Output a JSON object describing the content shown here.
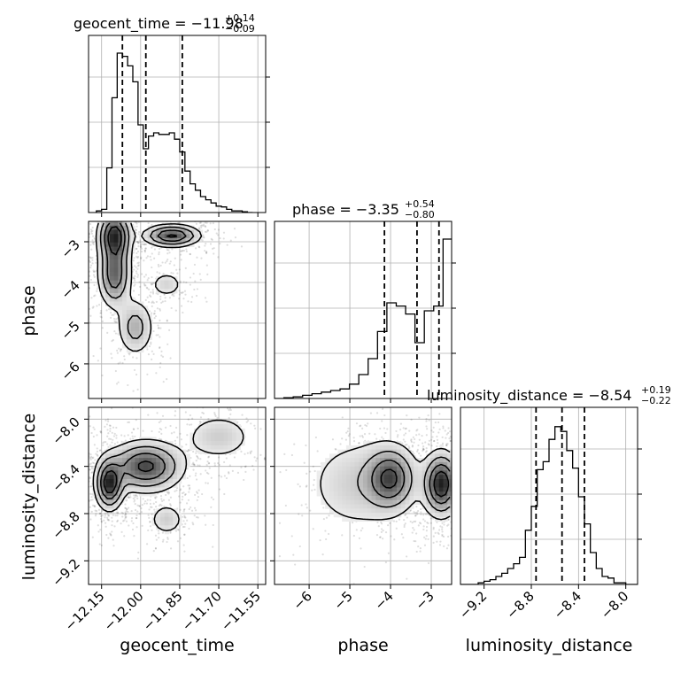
{
  "chart_data": {
    "type": "corner",
    "parameters": [
      "geocent_time",
      "phase",
      "luminosity_distance"
    ],
    "grid": true,
    "titles": [
      {
        "name": "geocent_time",
        "prefix": "geocent_time = ",
        "value": "−11.98",
        "plus": "+0.14",
        "minus": "−0.09"
      },
      {
        "name": "phase",
        "prefix": "phase = ",
        "value": "−3.35",
        "plus": "+0.54",
        "minus": "−0.80"
      },
      {
        "name": "luminosity_distance",
        "prefix": "luminosity_distance = ",
        "value": "−8.54",
        "plus": "+0.19",
        "minus": "−0.22"
      }
    ],
    "axes": {
      "geocent_time": {
        "range": [
          -12.2,
          -11.52
        ],
        "ticks": [
          -12.15,
          -12.0,
          -11.85,
          -11.7,
          -11.55
        ],
        "tick_labels": [
          "−12.15",
          "−12.00",
          "−11.85",
          "−11.70",
          "−11.55"
        ],
        "label": "geocent_time"
      },
      "phase": {
        "range": [
          -6.85,
          -2.5
        ],
        "ticks": [
          -6,
          -5,
          -4,
          -3
        ],
        "tick_labels": [
          "−6",
          "−5",
          "−4",
          "−3"
        ],
        "label": "phase"
      },
      "luminosity_distance": {
        "range": [
          -9.4,
          -7.9
        ],
        "ticks": [
          -9.2,
          -8.8,
          -8.4,
          -8.0
        ],
        "tick_labels": [
          "−9.2",
          "−8.8",
          "−8.4",
          "−8.0"
        ],
        "label": "luminosity_distance"
      }
    },
    "histograms": [
      {
        "parameter": "geocent_time",
        "edges": [
          -12.17,
          -12.15,
          -12.13,
          -12.11,
          -12.09,
          -12.07,
          -12.05,
          -12.03,
          -12.01,
          -11.99,
          -11.97,
          -11.95,
          -11.93,
          -11.91,
          -11.89,
          -11.87,
          -11.85,
          -11.83,
          -11.81,
          -11.79,
          -11.77,
          -11.75,
          -11.73,
          -11.71,
          -11.69,
          -11.67,
          -11.65,
          -11.63,
          -11.61,
          -11.59,
          -11.57
        ],
        "counts": [
          0.01,
          0.02,
          0.28,
          0.72,
          1.0,
          0.98,
          0.92,
          0.82,
          0.55,
          0.4,
          0.48,
          0.5,
          0.49,
          0.49,
          0.5,
          0.46,
          0.38,
          0.26,
          0.18,
          0.14,
          0.1,
          0.08,
          0.06,
          0.04,
          0.035,
          0.02,
          0.01,
          0.01,
          0.005,
          0.0
        ],
        "quantiles": [
          -12.07,
          -11.98,
          -11.84
        ]
      },
      {
        "parameter": "phase",
        "edges": [
          -6.85,
          -6.62,
          -6.39,
          -6.16,
          -5.93,
          -5.7,
          -5.47,
          -5.24,
          -5.01,
          -4.78,
          -4.55,
          -4.32,
          -4.09,
          -3.86,
          -3.63,
          -3.4,
          -3.17,
          -2.94,
          -2.71,
          -2.48
        ],
        "counts": [
          0.0,
          0.005,
          0.01,
          0.02,
          0.03,
          0.04,
          0.05,
          0.06,
          0.09,
          0.15,
          0.25,
          0.42,
          0.6,
          0.58,
          0.53,
          0.35,
          0.55,
          0.58,
          1.0,
          0.09
        ],
        "quantiles": [
          -4.15,
          -3.35,
          -2.81
        ]
      },
      {
        "parameter": "luminosity_distance",
        "edges": [
          -9.4,
          -9.35,
          -9.3,
          -9.25,
          -9.2,
          -9.15,
          -9.1,
          -9.05,
          -9.0,
          -8.95,
          -8.9,
          -8.85,
          -8.8,
          -8.75,
          -8.7,
          -8.65,
          -8.6,
          -8.55,
          -8.5,
          -8.45,
          -8.4,
          -8.35,
          -8.3,
          -8.25,
          -8.2,
          -8.15,
          -8.1,
          -8.05,
          -8.0,
          -7.95,
          -7.9
        ],
        "counts": [
          0.0,
          0.0,
          0.0,
          0.01,
          0.02,
          0.03,
          0.05,
          0.07,
          0.1,
          0.13,
          0.17,
          0.34,
          0.49,
          0.72,
          0.77,
          0.91,
          0.99,
          0.96,
          0.84,
          0.73,
          0.55,
          0.38,
          0.2,
          0.1,
          0.05,
          0.04,
          0.01,
          0.01,
          0.0,
          0.0
        ],
        "quantiles": [
          -8.76,
          -8.54,
          -8.35
        ]
      }
    ],
    "joint": [
      {
        "x": "geocent_time",
        "y": "phase",
        "modes": [
          {
            "x": -12.1,
            "y": -2.85,
            "sx": 0.035,
            "sy": 0.35,
            "w": 0.45
          },
          {
            "x": -12.1,
            "y": -3.8,
            "sx": 0.035,
            "sy": 0.45,
            "w": 0.35
          },
          {
            "x": -11.88,
            "y": -2.85,
            "sx": 0.06,
            "sy": 0.15,
            "w": 0.4
          },
          {
            "x": -11.9,
            "y": -4.05,
            "sx": 0.04,
            "sy": 0.2,
            "w": 0.12
          },
          {
            "x": -12.02,
            "y": -5.1,
            "sx": 0.04,
            "sy": 0.4,
            "w": 0.2
          }
        ]
      },
      {
        "x": "geocent_time",
        "y": "luminosity_distance",
        "modes": [
          {
            "x": -12.12,
            "y": -8.55,
            "sx": 0.03,
            "sy": 0.12,
            "w": 0.5
          },
          {
            "x": -11.98,
            "y": -8.4,
            "sx": 0.08,
            "sy": 0.12,
            "w": 0.45
          },
          {
            "x": -11.9,
            "y": -8.85,
            "sx": 0.04,
            "sy": 0.08,
            "w": 0.15
          },
          {
            "x": -11.7,
            "y": -8.15,
            "sx": 0.08,
            "sy": 0.12,
            "w": 0.15
          }
        ]
      },
      {
        "x": "phase",
        "y": "luminosity_distance",
        "modes": [
          {
            "x": -2.75,
            "y": -8.55,
            "sx": 0.25,
            "sy": 0.15,
            "w": 0.55
          },
          {
            "x": -4.0,
            "y": -8.5,
            "sx": 0.35,
            "sy": 0.15,
            "w": 0.4
          },
          {
            "x": -4.8,
            "y": -8.55,
            "sx": 0.8,
            "sy": 0.25,
            "w": 0.15
          }
        ]
      }
    ]
  }
}
